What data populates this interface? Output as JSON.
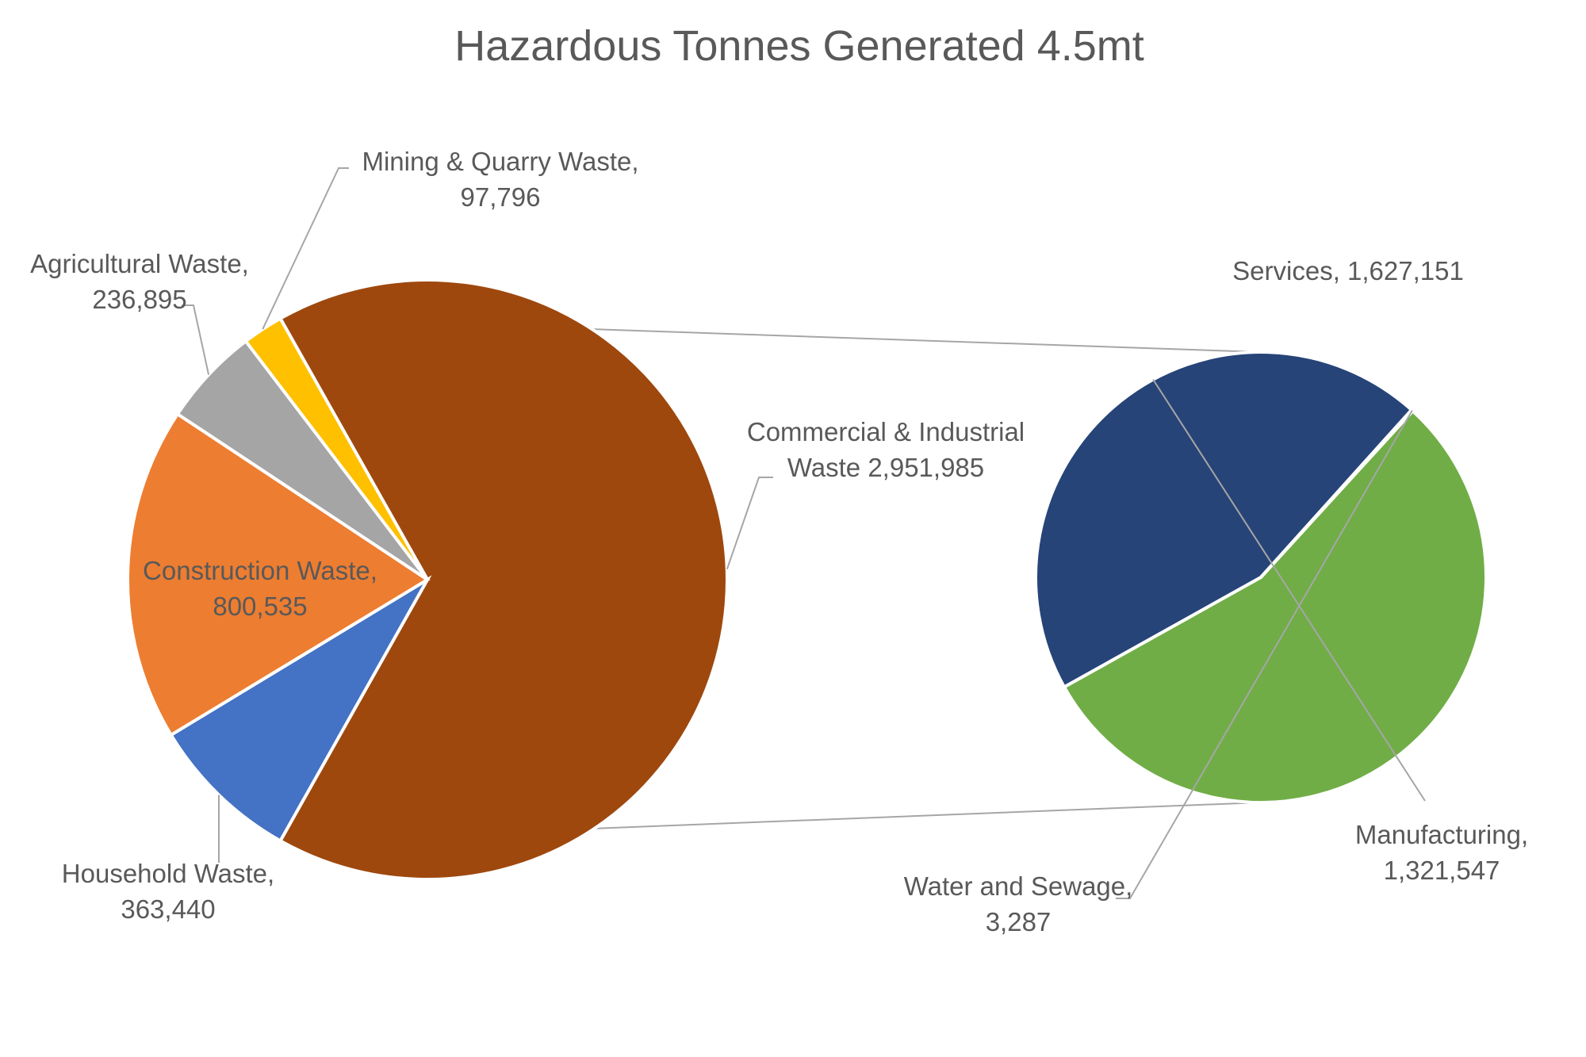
{
  "chart_data": [
    {
      "type": "pie",
      "title": "Hazardous Tonnes Generated 4.5mt",
      "slices": [
        {
          "name": "Commercial & Industrial Waste",
          "value": 2951985,
          "color": "#9e480e",
          "label_lines": [
            "Commercial & Industrial",
            "Waste  2,951,985"
          ]
        },
        {
          "name": "Household Waste",
          "value": 363440,
          "color": "#4472c4",
          "label_lines": [
            "Household Waste,",
            "363,440"
          ]
        },
        {
          "name": "Construction Waste",
          "value": 800535,
          "color": "#ed7d31",
          "label_lines": [
            "Construction Waste,",
            "800,535"
          ]
        },
        {
          "name": "Agricultural Waste",
          "value": 236895,
          "color": "#a5a5a5",
          "label_lines": [
            "Agricultural Waste,",
            "236,895"
          ]
        },
        {
          "name": "Mining & Quarry Waste",
          "value": 97796,
          "color": "#ffc000",
          "label_lines": [
            "Mining & Quarry Waste,",
            "97,796"
          ]
        }
      ]
    },
    {
      "type": "pie",
      "title": "",
      "breakdown_of": "Commercial & Industrial Waste",
      "slices": [
        {
          "name": "Services",
          "value": 1627151,
          "color": "#70ad47",
          "label_lines": [
            "Services, 1,627,151"
          ]
        },
        {
          "name": "Manufacturing",
          "value": 1321547,
          "color": "#264478",
          "label_lines": [
            "Manufacturing,",
            "1,321,547"
          ]
        },
        {
          "name": "Water and Sewage",
          "value": 3287,
          "color": "#5b9bd5",
          "label_lines": [
            "Water and Sewage,",
            "3,287"
          ]
        }
      ]
    }
  ]
}
